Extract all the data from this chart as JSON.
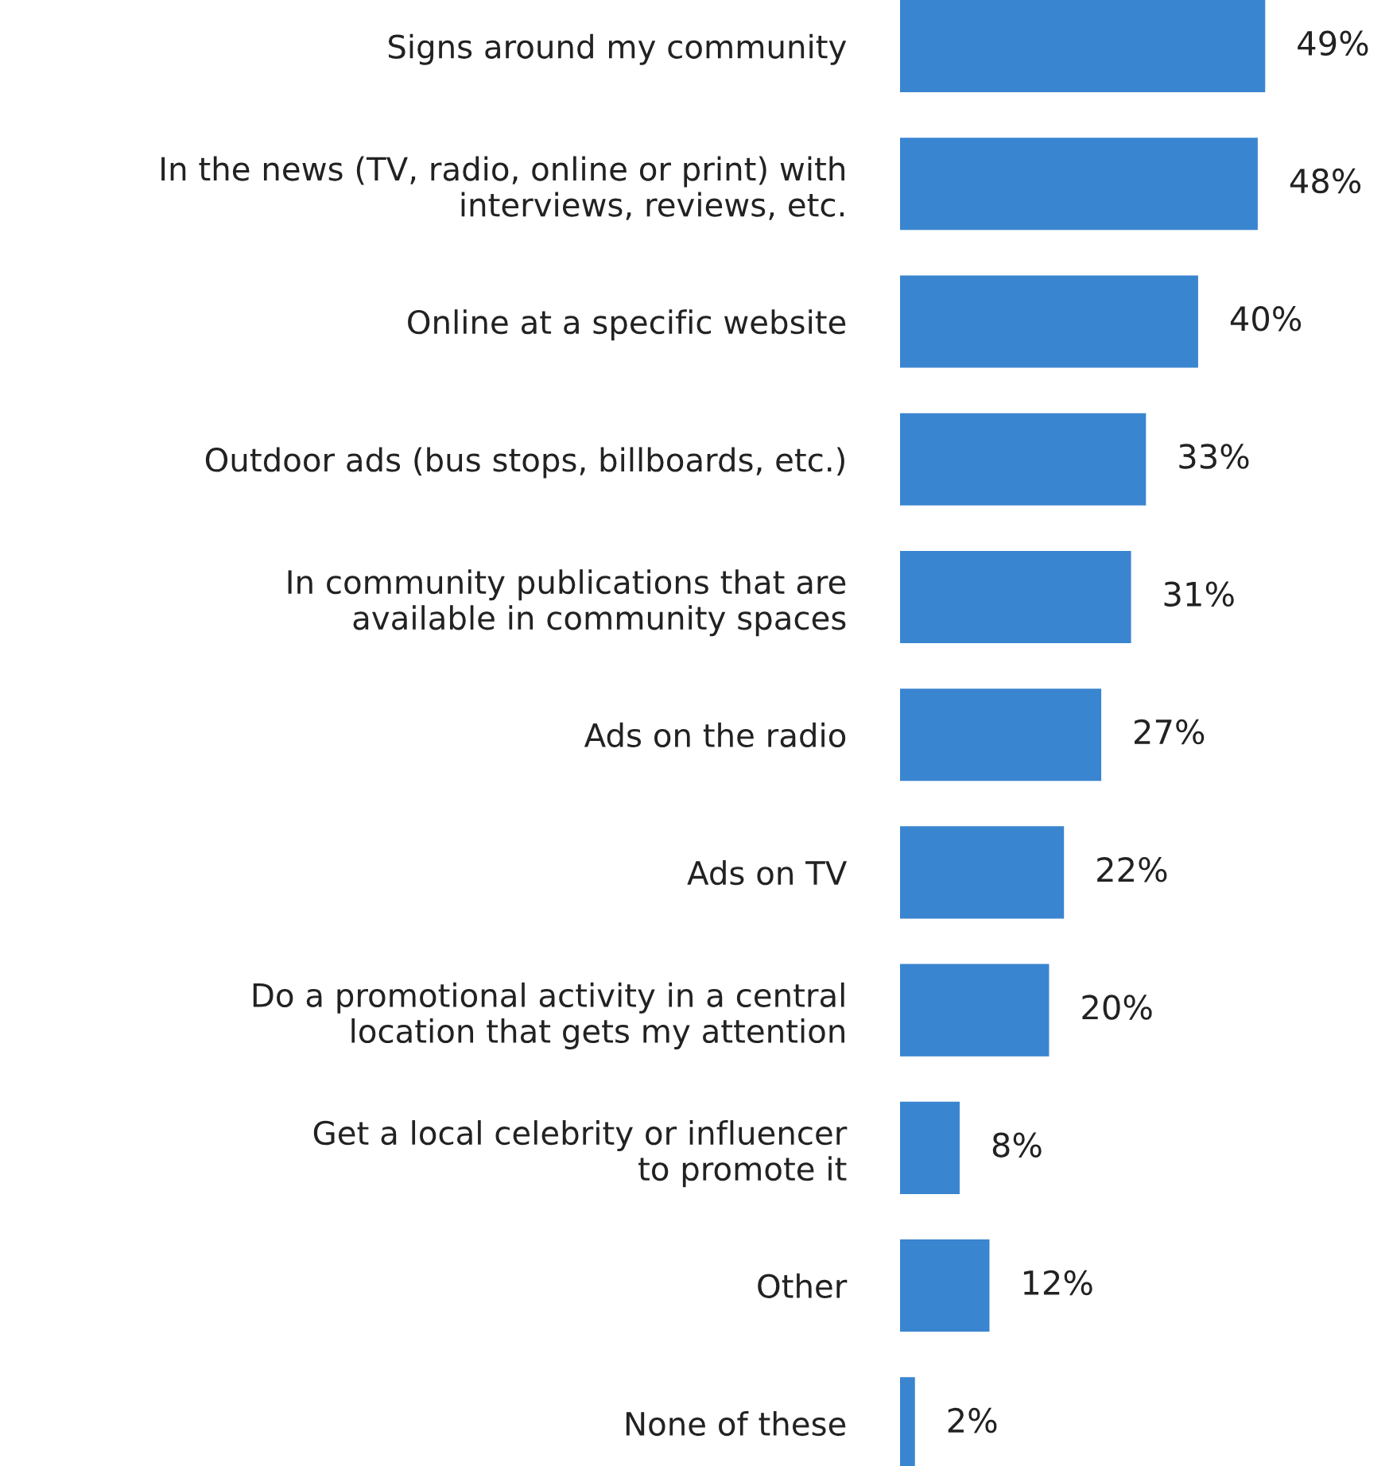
{
  "chart_data": {
    "type": "bar",
    "orientation": "horizontal",
    "tick_labels": "y",
    "grid": false,
    "legend": false,
    "categories": [
      "Signs around my community",
      "In the news (TV, radio, online or print) with\ninterviews, reviews, etc.",
      "Online at a specific website",
      "Outdoor ads (bus stops, billboards, etc.)",
      "In community publications that are\navailable in community spaces",
      "Ads on the radio",
      "Ads on TV",
      "Do a promotional activity in a central\nlocation that gets my attention",
      "Get a local celebrity or influencer\nto promote it",
      "Other",
      "None of these"
    ],
    "values": [
      49,
      48,
      40,
      33,
      31,
      27,
      22,
      20,
      8,
      12,
      2
    ],
    "value_labels": [
      "49%",
      "48%",
      "40%",
      "33%",
      "31%",
      "27%",
      "22%",
      "20%",
      "8%",
      "12%",
      "2%"
    ],
    "color": "#3a85d0"
  }
}
